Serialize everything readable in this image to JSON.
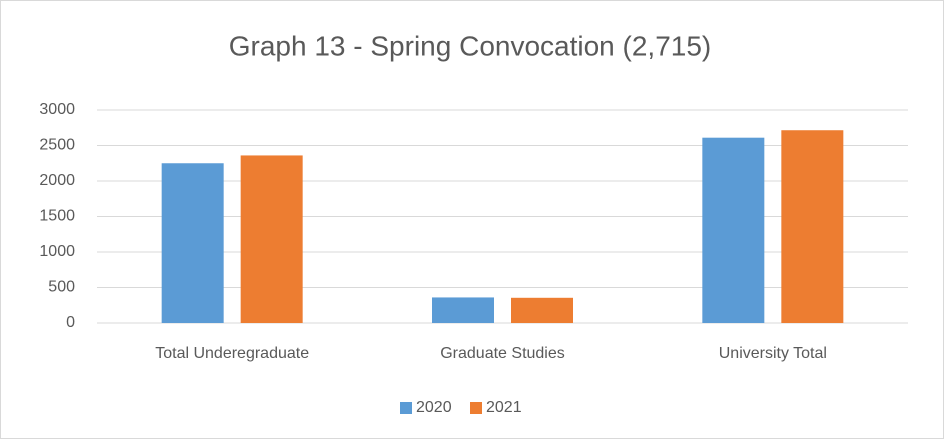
{
  "chart_data": {
    "type": "bar",
    "title": "Graph 13 - Spring Convocation (2,715)",
    "categories": [
      "Total Underegraduate",
      "Graduate Studies",
      "University Total"
    ],
    "series": [
      {
        "name": "2020",
        "color": "#5b9bd5",
        "values": [
          2250,
          360,
          2610
        ]
      },
      {
        "name": "2021",
        "color": "#ed7d31",
        "values": [
          2360,
          355,
          2715
        ]
      }
    ],
    "ylim": [
      0,
      3000
    ],
    "yticks": [
      0,
      500,
      1000,
      1500,
      2000,
      2500,
      3000
    ],
    "grid": true,
    "legend": "bottom"
  }
}
